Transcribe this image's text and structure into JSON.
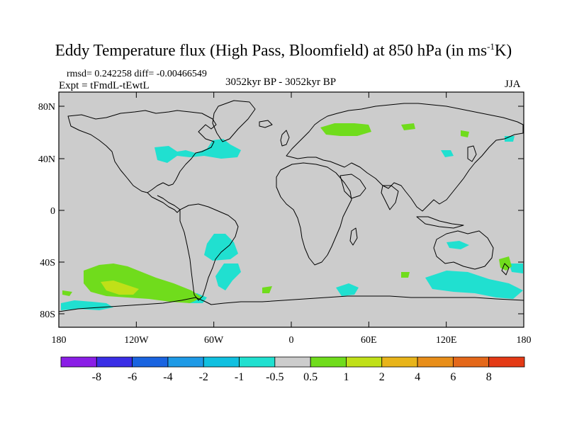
{
  "title": {
    "main": "Eddy Temperature flux (High Pass, Bloomfield) at 850 hPa (in ms",
    "sup": "-1",
    "unit_end": "K)"
  },
  "subtitle": {
    "stats": "rmsd= 0.242258 diff= -0.00466549",
    "expt": "Expt = tFmdL-tEwtL",
    "period": "3052kyr BP - 3052kyr BP",
    "season": "JJA"
  },
  "axes": {
    "lat_ticks": [
      "80N",
      "40N",
      "0",
      "40S",
      "80S"
    ],
    "lon_ticks": [
      "180",
      "120W",
      "60W",
      "0",
      "60E",
      "120E",
      "180"
    ]
  },
  "colorbar": {
    "labels": [
      "-8",
      "-6",
      "-4",
      "-2",
      "-1",
      "-0.5",
      "0.5",
      "1",
      "2",
      "4",
      "6",
      "8"
    ],
    "colors": [
      "#8a1ee6",
      "#3a2ee6",
      "#1a64e0",
      "#1e9ae6",
      "#10c0e0",
      "#20e0d0",
      "#cccccc",
      "#70dc1c",
      "#c0e018",
      "#e8b41a",
      "#e88e1a",
      "#e4681a",
      "#e43a16"
    ]
  },
  "map_colors": {
    "ocean": "#cccccc",
    "coast": "#000000"
  }
}
